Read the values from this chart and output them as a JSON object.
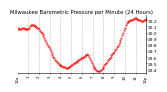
{
  "title": "Milwaukee Barometric Pressure per Minute (24 Hours)",
  "title_fontsize": 3.8,
  "line_color": "#ff0000",
  "background_color": "#ffffff",
  "plot_bg_color": "#ffffff",
  "grid_color": "#bbbbbb",
  "ylim": [
    29.35,
    30.28
  ],
  "yticks": [
    29.4,
    29.5,
    29.6,
    29.7,
    29.8,
    29.9,
    30.0,
    30.1,
    30.2
  ],
  "ytick_fontsize": 3.2,
  "xtick_fontsize": 2.8,
  "x_values": [
    0,
    1,
    2,
    3,
    4,
    5,
    6,
    7,
    8,
    9,
    10,
    11,
    12,
    13,
    14,
    15,
    16,
    17,
    18,
    19,
    20,
    21,
    22,
    23,
    24,
    25,
    26,
    27,
    28,
    29,
    30,
    31,
    32,
    33,
    34,
    35,
    36,
    37,
    38,
    39,
    40,
    41,
    42,
    43,
    44,
    45,
    46,
    47,
    48,
    49,
    50,
    51,
    52,
    53,
    54,
    55,
    56,
    57,
    58,
    59,
    60,
    61,
    62,
    63,
    64,
    65,
    66,
    67,
    68,
    69,
    70,
    71,
    72,
    73,
    74,
    75,
    76,
    77,
    78,
    79,
    80,
    81,
    82,
    83,
    84,
    85,
    86,
    87,
    88,
    89,
    90,
    91,
    92,
    93,
    94,
    95,
    96,
    97,
    98,
    99,
    100,
    101,
    102,
    103,
    104,
    105,
    106,
    107,
    108,
    109,
    110,
    111,
    112,
    113,
    114,
    115,
    116,
    117,
    118,
    119,
    120,
    121,
    122,
    123,
    124,
    125,
    126,
    127,
    128,
    129,
    130,
    131,
    132,
    133,
    134,
    135,
    136,
    137,
    138,
    139,
    140,
    141,
    142,
    143
  ],
  "y_values": [
    30.08,
    30.06,
    30.05,
    30.05,
    30.06,
    30.07,
    30.08,
    30.07,
    30.06,
    30.05,
    30.05,
    30.05,
    30.06,
    30.08,
    30.1,
    30.12,
    30.13,
    30.13,
    30.12,
    30.11,
    30.1,
    30.09,
    30.08,
    30.07,
    30.05,
    30.03,
    30.01,
    29.99,
    29.97,
    29.94,
    29.91,
    29.88,
    29.85,
    29.82,
    29.79,
    29.76,
    29.73,
    29.7,
    29.67,
    29.64,
    29.61,
    29.58,
    29.56,
    29.54,
    29.52,
    29.5,
    29.49,
    29.48,
    29.47,
    29.46,
    29.46,
    29.45,
    29.45,
    29.44,
    29.43,
    29.43,
    29.43,
    29.44,
    29.45,
    29.46,
    29.47,
    29.48,
    29.49,
    29.5,
    29.51,
    29.52,
    29.53,
    29.54,
    29.55,
    29.56,
    29.57,
    29.58,
    29.59,
    29.6,
    29.61,
    29.62,
    29.63,
    29.64,
    29.65,
    29.63,
    29.6,
    29.57,
    29.54,
    29.51,
    29.48,
    29.45,
    29.43,
    29.41,
    29.39,
    29.38,
    29.37,
    29.37,
    29.38,
    29.39,
    29.41,
    29.43,
    29.45,
    29.47,
    29.49,
    29.51,
    29.53,
    29.55,
    29.57,
    29.59,
    29.61,
    29.63,
    29.65,
    29.67,
    29.69,
    29.71,
    29.73,
    29.76,
    29.79,
    29.82,
    29.85,
    29.88,
    29.92,
    29.96,
    30.0,
    30.04,
    30.08,
    30.12,
    30.16,
    30.17,
    30.18,
    30.19,
    30.2,
    30.21,
    30.21,
    30.22,
    30.22,
    30.23,
    30.23,
    30.22,
    30.22,
    30.21,
    30.21,
    30.2,
    30.19,
    30.19,
    30.19,
    30.2,
    30.21,
    30.22
  ],
  "xtick_positions": [
    0,
    12,
    24,
    36,
    48,
    60,
    72,
    84,
    96,
    108,
    120,
    132,
    143
  ],
  "xtick_labels": [
    "12a",
    "1",
    "2",
    "3",
    "4",
    "5",
    "6",
    "7",
    "8",
    "9",
    "10",
    "11",
    "12p"
  ],
  "vgrid_positions": [
    12,
    24,
    36,
    48,
    60,
    72,
    84,
    96,
    108,
    120,
    132
  ]
}
